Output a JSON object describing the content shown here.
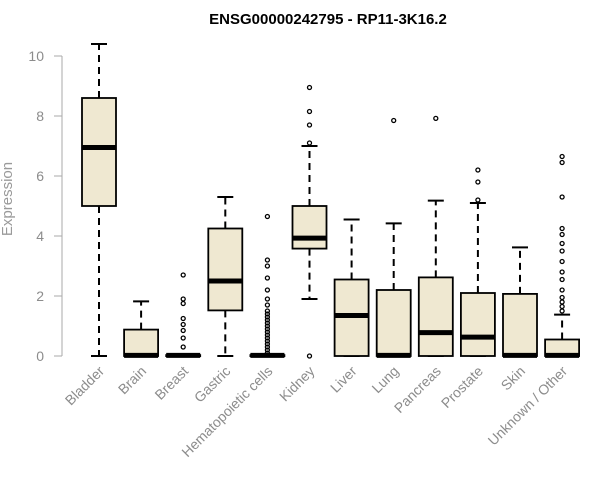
{
  "chart_data": {
    "type": "box",
    "title": "ENSG00000242795 - RP11-3K16.2",
    "xlabel": "",
    "ylabel": "Expression",
    "ylim": [
      0,
      10.5
    ],
    "yticks": [
      0,
      2,
      4,
      6,
      8,
      10
    ],
    "grid": false,
    "legend": "none",
    "colors": {
      "box_fill": "#efe8d1",
      "box_stroke": "#000000",
      "axis": "#aaaaaa",
      "text": "#8c8c8c"
    },
    "categories": [
      "Bladder",
      "Brain",
      "Breast",
      "Gastric",
      "Hematopoietic cells",
      "Kidney",
      "Liver",
      "Lung",
      "Pancreas",
      "Prostate",
      "Skin",
      "Unknown / Other"
    ],
    "boxes": [
      {
        "min": 0,
        "q1": 5.0,
        "median": 6.95,
        "q3": 8.6,
        "max": 10.4,
        "outliers": []
      },
      {
        "min": 0,
        "q1": 0,
        "median": 0.02,
        "q3": 0.88,
        "max": 1.82,
        "outliers": []
      },
      {
        "min": 0,
        "q1": 0,
        "median": 0.02,
        "q3": 0.03,
        "max": 0.03,
        "outliers": [
          0.3,
          0.6,
          0.85,
          1.05,
          1.25,
          1.75,
          1.9,
          2.7
        ]
      },
      {
        "min": 0,
        "q1": 1.52,
        "median": 2.5,
        "q3": 4.25,
        "max": 5.3,
        "outliers": []
      },
      {
        "min": 0,
        "q1": 0,
        "median": 0.02,
        "q3": 0.03,
        "max": 0.03,
        "outliers": [
          0.1,
          0.2,
          0.3,
          0.4,
          0.5,
          0.6,
          0.7,
          0.8,
          0.9,
          1.0,
          1.1,
          1.2,
          1.3,
          1.4,
          1.5,
          1.7,
          1.9,
          2.2,
          2.6,
          3.0,
          3.2,
          4.65
        ]
      },
      {
        "min": 1.9,
        "q1": 3.58,
        "median": 3.93,
        "q3": 5.0,
        "max": 7.0,
        "outliers": [
          0.0,
          7.1,
          7.7,
          8.15,
          8.95
        ]
      },
      {
        "min": 0,
        "q1": 0,
        "median": 1.35,
        "q3": 2.55,
        "max": 4.55,
        "outliers": []
      },
      {
        "min": 0,
        "q1": 0,
        "median": 0.02,
        "q3": 2.2,
        "max": 4.42,
        "outliers": [
          7.85
        ]
      },
      {
        "min": 0,
        "q1": 0,
        "median": 0.78,
        "q3": 2.62,
        "max": 5.18,
        "outliers": [
          7.92
        ]
      },
      {
        "min": 0,
        "q1": 0,
        "median": 0.63,
        "q3": 2.1,
        "max": 5.1,
        "outliers": [
          5.2,
          5.8,
          6.2
        ]
      },
      {
        "min": 0,
        "q1": 0,
        "median": 0.02,
        "q3": 2.07,
        "max": 3.62,
        "outliers": []
      },
      {
        "min": 0,
        "q1": 0,
        "median": 0.02,
        "q3": 0.55,
        "max": 1.38,
        "outliers": [
          1.5,
          1.65,
          1.8,
          1.95,
          2.2,
          2.55,
          2.8,
          3.15,
          3.5,
          3.75,
          4.05,
          4.25,
          5.3,
          6.45,
          6.65
        ]
      }
    ]
  }
}
